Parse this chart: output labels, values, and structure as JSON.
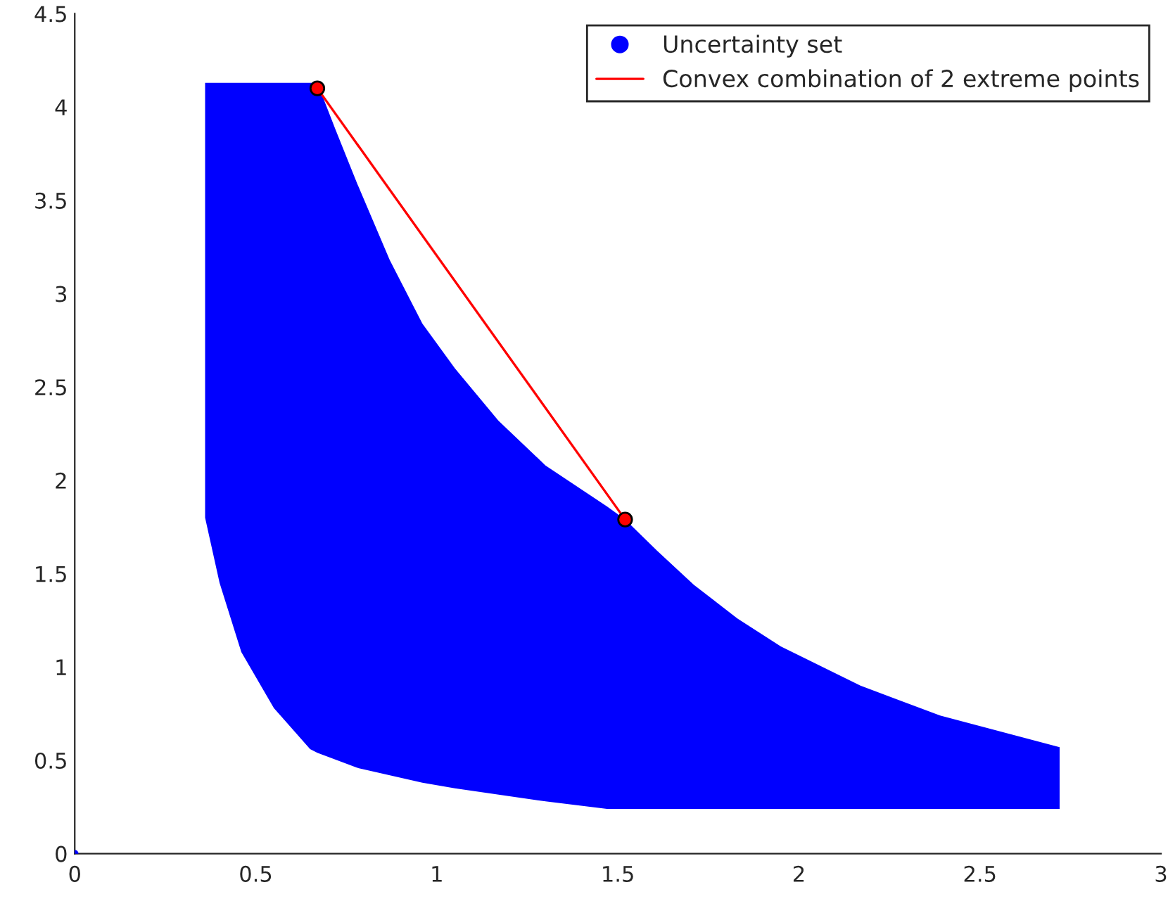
{
  "chart_data": {
    "type": "area",
    "xlim": [
      0,
      3
    ],
    "ylim": [
      0,
      4.5
    ],
    "xticks": [
      0,
      0.5,
      1,
      1.5,
      2,
      2.5,
      3
    ],
    "yticks": [
      0,
      0.5,
      1,
      1.5,
      2,
      2.5,
      3,
      3.5,
      4,
      4.5
    ],
    "grid": false,
    "legend": "top right",
    "series": [
      {
        "name": "Uncertainty set",
        "color": "#0000ff",
        "x": [
          0.36,
          0.36,
          0.67,
          0.72,
          0.78,
          0.87,
          0.96,
          1.05,
          1.17,
          1.3,
          1.47,
          1.52,
          1.61,
          1.71,
          1.83,
          1.95,
          2.17,
          2.39,
          2.72,
          2.72,
          1.47,
          1.3,
          1.05,
          0.96,
          0.78,
          0.67,
          0.65,
          0.55,
          0.46,
          0.4
        ],
        "values": [
          1.8,
          4.13,
          4.13,
          3.88,
          3.59,
          3.18,
          2.84,
          2.6,
          2.32,
          2.08,
          1.86,
          1.79,
          1.62,
          1.44,
          1.26,
          1.11,
          0.9,
          0.74,
          0.57,
          0.24,
          0.24,
          0.28,
          0.35,
          0.38,
          0.46,
          0.54,
          0.56,
          0.78,
          1.08,
          1.45
        ]
      },
      {
        "type": "scatter",
        "color": "#0000ff",
        "marker": "circle",
        "x": [
          0
        ],
        "values": [
          0
        ]
      },
      {
        "name": "Convex combination of 2 extreme points",
        "type": "line",
        "color": "#ff0000",
        "marker": "circle",
        "line_style": "solid",
        "x": [
          0.67,
          1.52
        ],
        "values": [
          4.1,
          1.79
        ]
      }
    ]
  }
}
